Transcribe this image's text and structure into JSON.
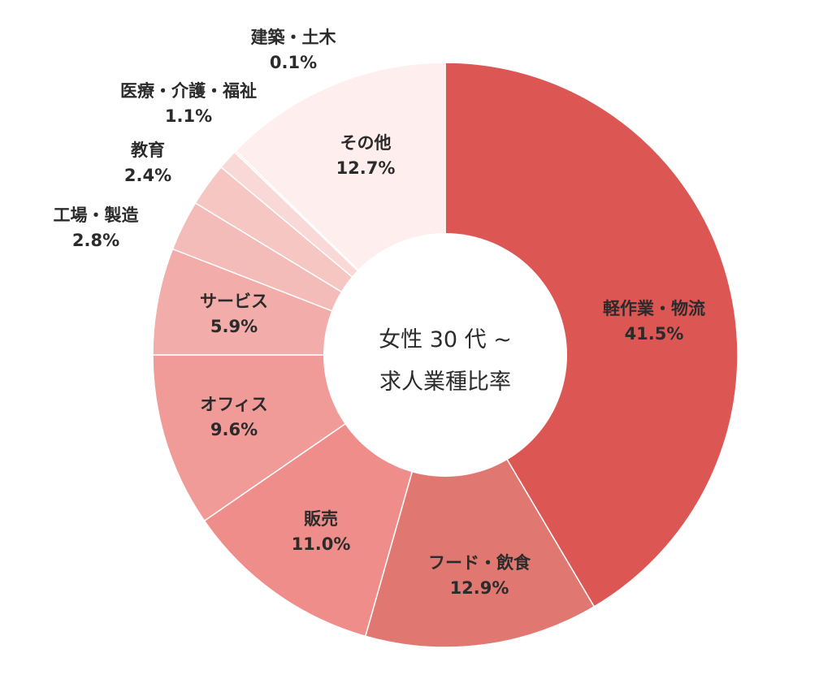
{
  "chart_data": {
    "type": "pie",
    "title": "女性 30 代 ~",
    "subtitle": "求人業種比率",
    "slices": [
      {
        "label": "軽作業・物流",
        "value": 41.5,
        "display": "41.5%",
        "color": "#dc5753"
      },
      {
        "label": "フード・飲食",
        "value": 12.9,
        "display": "12.9%",
        "color": "#e07871"
      },
      {
        "label": "販売",
        "value": 11.0,
        "display": "11.0%",
        "color": "#ee8d89"
      },
      {
        "label": "オフィス",
        "value": 9.6,
        "display": "9.6%",
        "color": "#f09b98"
      },
      {
        "label": "サービス",
        "value": 5.9,
        "display": "5.9%",
        "color": "#f2aca9"
      },
      {
        "label": "工場・製造",
        "value": 2.8,
        "display": "2.8%",
        "color": "#f4bcb9"
      },
      {
        "label": "教育",
        "value": 2.4,
        "display": "2.4%",
        "color": "#f6c6c3"
      },
      {
        "label": "医療・介護・福祉",
        "value": 1.1,
        "display": "1.1%",
        "color": "#f9d9d7"
      },
      {
        "label": "建築・土木",
        "value": 0.1,
        "display": "0.1%",
        "color": "#fbe4e3"
      },
      {
        "label": "その他",
        "value": 12.7,
        "display": "12.7%",
        "color": "#feeeee"
      }
    ]
  }
}
